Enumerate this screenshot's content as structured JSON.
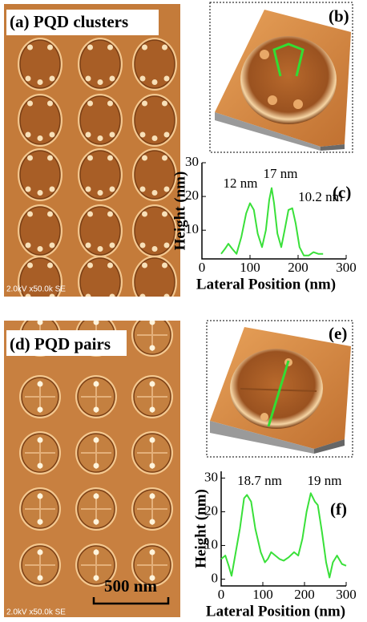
{
  "figure": {
    "a": {
      "label": "(a) PQD clusters",
      "caption": "2.0kV x50.0k SE"
    },
    "b": {
      "label": "(b)"
    },
    "d": {
      "label": "(d) PQD pairs",
      "caption": "2.0kV x50.0k SE",
      "scale_bar": "500 nm"
    },
    "e": {
      "label": "(e)"
    }
  },
  "chart_data": [
    {
      "type": "line",
      "panel_label": "(c)",
      "ylabel": "Height (nm)",
      "xlabel": "Lateral Position (nm)",
      "x": [
        40,
        48,
        55,
        63,
        72,
        82,
        92,
        100,
        108,
        116,
        125,
        133,
        140,
        145,
        150,
        157,
        165,
        172,
        180,
        188,
        195,
        203,
        212,
        222,
        232,
        242,
        252
      ],
      "values": [
        3,
        4.5,
        6,
        4.5,
        3,
        8,
        15,
        18,
        16,
        9,
        5,
        10,
        19,
        22.5,
        18,
        9,
        5,
        10,
        16,
        16.5,
        12,
        5,
        2.5,
        2.5,
        3.5,
        3,
        3
      ],
      "color": "#39e039",
      "xlim": [
        0,
        300
      ],
      "ylim": [
        1.5,
        30
      ],
      "xticks": [
        0,
        100,
        200,
        300
      ],
      "yticks": [
        10,
        20,
        30
      ],
      "annotations": [
        "12 nm",
        "17 nm",
        "10.2 nm"
      ]
    },
    {
      "type": "line",
      "panel_label": "(f)",
      "ylabel": "Height (nm)",
      "xlabel": "Lateral Position (nm)",
      "x": [
        0,
        10,
        18,
        25,
        35,
        45,
        55,
        62,
        72,
        82,
        95,
        105,
        112,
        120,
        130,
        140,
        150,
        162,
        175,
        185,
        195,
        205,
        215,
        225,
        232,
        242,
        252,
        260,
        268,
        278,
        290,
        300
      ],
      "values": [
        6,
        7,
        4,
        1,
        8,
        15,
        24,
        25,
        23,
        15,
        8,
        5,
        6,
        8,
        7,
        6,
        5.5,
        6.5,
        8,
        7,
        12,
        20,
        25.5,
        23,
        22,
        14,
        5,
        0.5,
        5,
        7,
        4.5,
        4
      ],
      "color": "#39e039",
      "xlim": [
        0,
        300
      ],
      "ylim": [
        -2,
        32
      ],
      "xticks": [
        0,
        100,
        200,
        300
      ],
      "yticks": [
        0,
        10,
        20,
        30
      ],
      "annotations": [
        "18.7 nm",
        "19 nm"
      ]
    }
  ]
}
